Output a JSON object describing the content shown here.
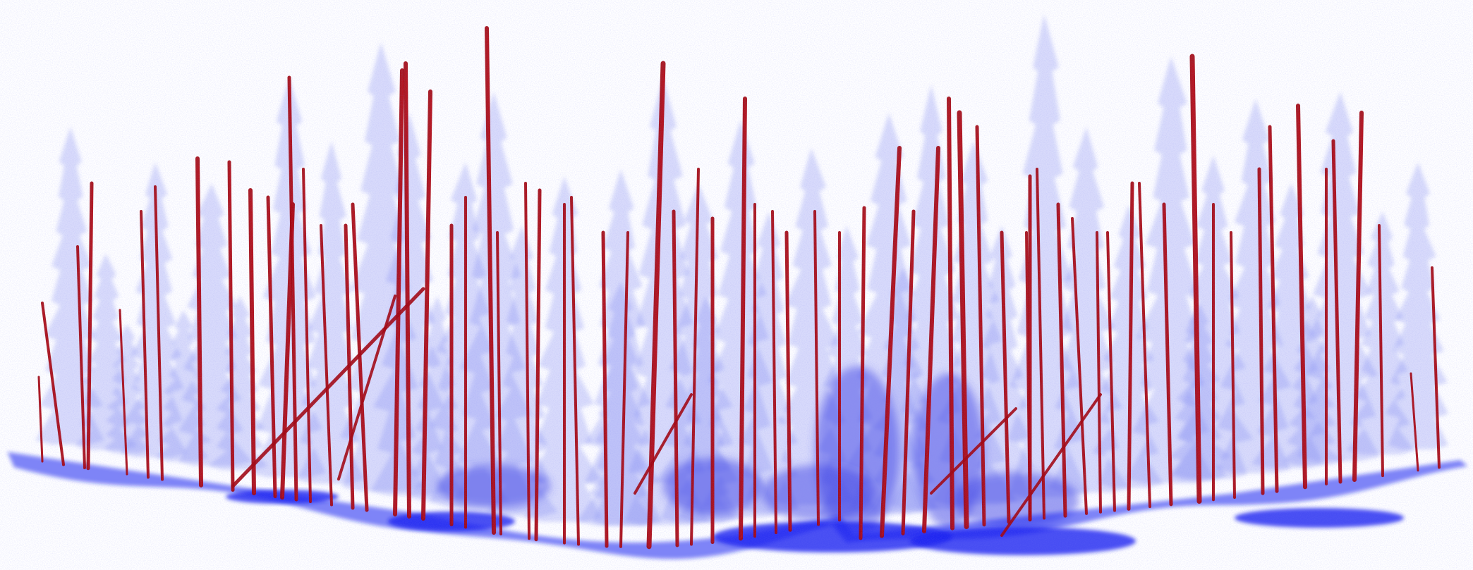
{
  "scene": {
    "type": "point-cloud-forest",
    "background_color": "#ffffff",
    "canopy_color": "#8a8ef2",
    "canopy_dense_color": "#3b3fe6",
    "ground_color": "#1a1ff0",
    "stem_color": "#a3070f",
    "stem_highlight_color": "#c0101a"
  }
}
